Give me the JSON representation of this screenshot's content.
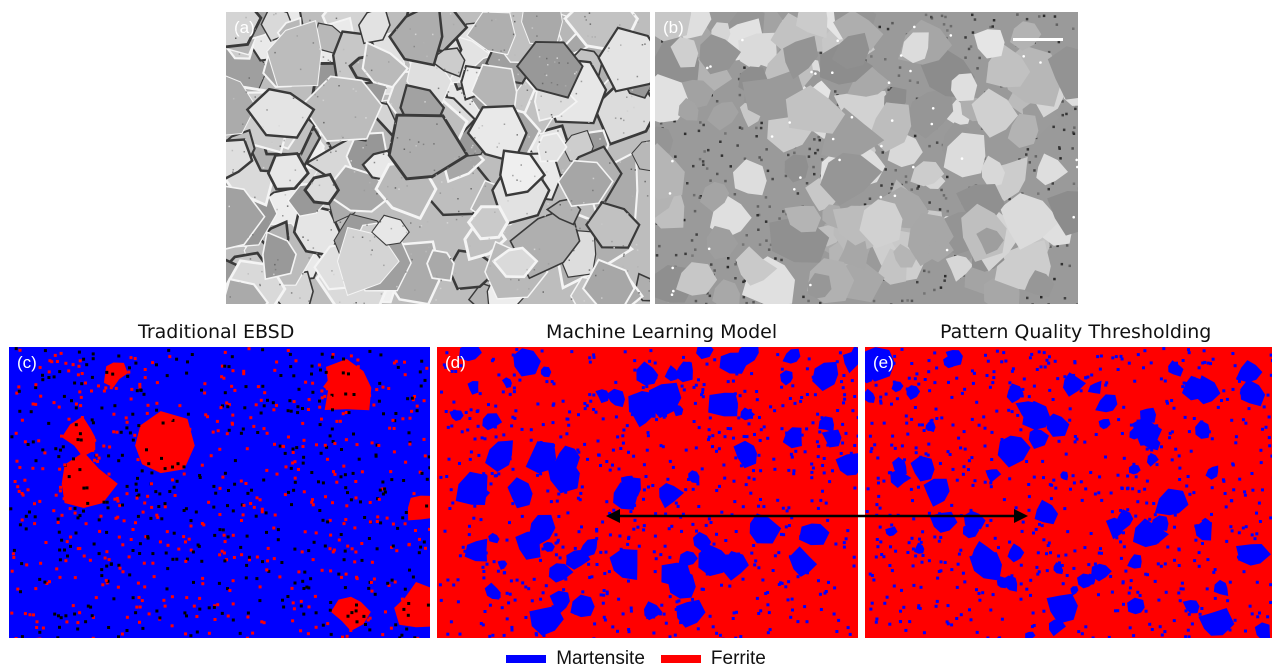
{
  "figure": {
    "panels": [
      {
        "id": "a",
        "label": "(a)"
      },
      {
        "id": "b",
        "label": "(b)"
      },
      {
        "id": "c",
        "label": "(c)",
        "title": "Traditional EBSD"
      },
      {
        "id": "d",
        "label": "(d)",
        "title": "Machine Learning Model"
      },
      {
        "id": "e",
        "label": "(e)",
        "title": "Pattern Quality Thresholding"
      }
    ],
    "legend": [
      {
        "name": "Martensite",
        "color": "#0000ff"
      },
      {
        "name": "Ferrite",
        "color": "#ff0000"
      }
    ],
    "colors": {
      "martensite": "#0000ff",
      "ferrite": "#ff0000",
      "unindexed": "#000000"
    }
  }
}
